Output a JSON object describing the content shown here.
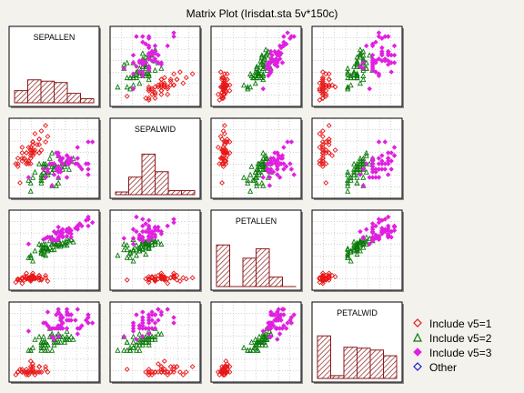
{
  "chart_data": {
    "type": "scatter-matrix",
    "title": "Matrix Plot (Irisdat.sta 5v*150c)",
    "variables": [
      "SEPALLEN",
      "SEPALWID",
      "PETALLEN",
      "PETALWID"
    ],
    "histograms": [
      [
        9,
        17,
        16,
        15,
        7,
        3
      ],
      [
        2,
        13,
        30,
        17,
        3,
        3
      ],
      [
        44,
        0,
        30,
        40,
        10,
        0
      ],
      [
        45,
        3,
        33,
        32,
        30,
        24
      ]
    ],
    "grid": true,
    "legend_position": "bottom-right",
    "series": [
      {
        "name": "Include v5=1",
        "color": "#e81818",
        "marker": "open-diamond",
        "points": [
          [
            5.1,
            3.5,
            1.4,
            0.2
          ],
          [
            4.9,
            3.0,
            1.4,
            0.2
          ],
          [
            4.7,
            3.2,
            1.3,
            0.2
          ],
          [
            4.6,
            3.1,
            1.5,
            0.2
          ],
          [
            5.0,
            3.6,
            1.4,
            0.2
          ],
          [
            5.4,
            3.9,
            1.7,
            0.4
          ],
          [
            4.6,
            3.4,
            1.4,
            0.3
          ],
          [
            5.0,
            3.4,
            1.5,
            0.2
          ],
          [
            4.4,
            2.9,
            1.4,
            0.2
          ],
          [
            4.9,
            3.1,
            1.5,
            0.1
          ],
          [
            5.4,
            3.7,
            1.5,
            0.2
          ],
          [
            4.8,
            3.4,
            1.6,
            0.2
          ],
          [
            4.8,
            3.0,
            1.4,
            0.1
          ],
          [
            4.3,
            3.0,
            1.1,
            0.1
          ],
          [
            5.8,
            4.0,
            1.2,
            0.2
          ],
          [
            5.7,
            4.4,
            1.5,
            0.4
          ],
          [
            5.4,
            3.9,
            1.3,
            0.4
          ],
          [
            5.1,
            3.5,
            1.4,
            0.3
          ],
          [
            5.7,
            3.8,
            1.7,
            0.3
          ],
          [
            5.1,
            3.8,
            1.5,
            0.3
          ],
          [
            5.4,
            3.4,
            1.7,
            0.2
          ],
          [
            5.1,
            3.7,
            1.5,
            0.4
          ],
          [
            4.6,
            3.6,
            1.0,
            0.2
          ],
          [
            5.1,
            3.3,
            1.7,
            0.5
          ],
          [
            4.8,
            3.4,
            1.9,
            0.2
          ],
          [
            5.0,
            3.0,
            1.6,
            0.2
          ],
          [
            5.0,
            3.4,
            1.6,
            0.4
          ],
          [
            5.2,
            3.5,
            1.5,
            0.2
          ],
          [
            5.2,
            3.4,
            1.4,
            0.2
          ],
          [
            4.7,
            3.2,
            1.6,
            0.2
          ],
          [
            4.8,
            3.1,
            1.6,
            0.2
          ],
          [
            5.4,
            3.4,
            1.5,
            0.4
          ],
          [
            5.2,
            4.1,
            1.5,
            0.1
          ],
          [
            5.5,
            4.2,
            1.4,
            0.2
          ],
          [
            4.9,
            3.1,
            1.5,
            0.2
          ],
          [
            5.0,
            3.2,
            1.2,
            0.2
          ],
          [
            5.5,
            3.5,
            1.3,
            0.2
          ],
          [
            4.9,
            3.6,
            1.4,
            0.1
          ],
          [
            4.4,
            3.0,
            1.3,
            0.2
          ],
          [
            5.1,
            3.4,
            1.5,
            0.2
          ],
          [
            5.0,
            3.5,
            1.3,
            0.3
          ],
          [
            4.5,
            2.3,
            1.3,
            0.3
          ],
          [
            4.4,
            3.2,
            1.3,
            0.2
          ],
          [
            5.0,
            3.5,
            1.6,
            0.6
          ],
          [
            5.1,
            3.8,
            1.9,
            0.4
          ],
          [
            4.8,
            3.0,
            1.4,
            0.3
          ],
          [
            5.1,
            3.8,
            1.6,
            0.2
          ],
          [
            4.6,
            3.2,
            1.4,
            0.2
          ],
          [
            5.3,
            3.7,
            1.5,
            0.2
          ],
          [
            5.0,
            3.3,
            1.4,
            0.2
          ]
        ]
      },
      {
        "name": "Include v5=2",
        "color": "#0a7a0a",
        "marker": "open-triangle",
        "points": [
          [
            7.0,
            3.2,
            4.7,
            1.4
          ],
          [
            6.4,
            3.2,
            4.5,
            1.5
          ],
          [
            6.9,
            3.1,
            4.9,
            1.5
          ],
          [
            5.5,
            2.3,
            4.0,
            1.3
          ],
          [
            6.5,
            2.8,
            4.6,
            1.5
          ],
          [
            5.7,
            2.8,
            4.5,
            1.3
          ],
          [
            6.3,
            3.3,
            4.7,
            1.6
          ],
          [
            4.9,
            2.4,
            3.3,
            1.0
          ],
          [
            6.6,
            2.9,
            4.6,
            1.3
          ],
          [
            5.2,
            2.7,
            3.9,
            1.4
          ],
          [
            5.0,
            2.0,
            3.5,
            1.0
          ],
          [
            5.9,
            3.0,
            4.2,
            1.5
          ],
          [
            6.0,
            2.2,
            4.0,
            1.0
          ],
          [
            6.1,
            2.9,
            4.7,
            1.4
          ],
          [
            5.6,
            2.9,
            3.6,
            1.3
          ],
          [
            6.7,
            3.1,
            4.4,
            1.4
          ],
          [
            5.6,
            3.0,
            4.5,
            1.5
          ],
          [
            5.8,
            2.7,
            4.1,
            1.0
          ],
          [
            6.2,
            2.2,
            4.5,
            1.5
          ],
          [
            5.6,
            2.5,
            3.9,
            1.1
          ],
          [
            5.9,
            3.2,
            4.8,
            1.8
          ],
          [
            6.1,
            2.8,
            4.0,
            1.3
          ],
          [
            6.3,
            2.5,
            4.9,
            1.5
          ],
          [
            6.1,
            2.8,
            4.7,
            1.2
          ],
          [
            6.4,
            2.9,
            4.3,
            1.3
          ],
          [
            6.6,
            3.0,
            4.4,
            1.4
          ],
          [
            6.8,
            2.8,
            4.8,
            1.4
          ],
          [
            6.7,
            3.0,
            5.0,
            1.7
          ],
          [
            6.0,
            2.9,
            4.5,
            1.5
          ],
          [
            5.7,
            2.6,
            3.5,
            1.0
          ],
          [
            5.5,
            2.4,
            3.8,
            1.1
          ],
          [
            5.5,
            2.4,
            3.7,
            1.0
          ],
          [
            5.8,
            2.7,
            3.9,
            1.2
          ],
          [
            6.0,
            2.7,
            5.1,
            1.6
          ],
          [
            5.4,
            3.0,
            4.5,
            1.5
          ],
          [
            6.0,
            3.4,
            4.5,
            1.6
          ],
          [
            6.7,
            3.1,
            4.7,
            1.5
          ],
          [
            6.3,
            2.3,
            4.4,
            1.3
          ],
          [
            5.6,
            3.0,
            4.1,
            1.3
          ],
          [
            5.5,
            2.5,
            4.0,
            1.3
          ],
          [
            5.5,
            2.6,
            4.4,
            1.2
          ],
          [
            6.1,
            3.0,
            4.6,
            1.4
          ],
          [
            5.8,
            2.6,
            4.0,
            1.2
          ],
          [
            5.0,
            2.3,
            3.3,
            1.0
          ],
          [
            5.6,
            2.7,
            4.2,
            1.3
          ],
          [
            5.7,
            3.0,
            4.2,
            1.2
          ],
          [
            5.7,
            2.9,
            4.2,
            1.3
          ],
          [
            6.2,
            2.9,
            4.3,
            1.3
          ],
          [
            5.1,
            2.5,
            3.0,
            1.1
          ],
          [
            5.7,
            2.8,
            4.1,
            1.3
          ]
        ]
      },
      {
        "name": "Include v5=3",
        "color": "#e020e0",
        "marker": "filled-diamond",
        "points": [
          [
            6.3,
            3.3,
            6.0,
            2.5
          ],
          [
            5.8,
            2.7,
            5.1,
            1.9
          ],
          [
            7.1,
            3.0,
            5.9,
            2.1
          ],
          [
            6.3,
            2.9,
            5.6,
            1.8
          ],
          [
            6.5,
            3.0,
            5.8,
            2.2
          ],
          [
            7.6,
            3.0,
            6.6,
            2.1
          ],
          [
            4.9,
            2.5,
            4.5,
            1.7
          ],
          [
            7.3,
            2.9,
            6.3,
            1.8
          ],
          [
            6.7,
            2.5,
            5.8,
            1.8
          ],
          [
            7.2,
            3.6,
            6.1,
            2.5
          ],
          [
            6.5,
            3.2,
            5.1,
            2.0
          ],
          [
            6.4,
            2.7,
            5.3,
            1.9
          ],
          [
            6.8,
            3.0,
            5.5,
            2.1
          ],
          [
            5.7,
            2.5,
            5.0,
            2.0
          ],
          [
            5.8,
            2.8,
            5.1,
            2.4
          ],
          [
            6.4,
            3.2,
            5.3,
            2.3
          ],
          [
            6.5,
            3.0,
            5.5,
            1.8
          ],
          [
            7.7,
            3.8,
            6.7,
            2.2
          ],
          [
            7.7,
            2.6,
            6.9,
            2.3
          ],
          [
            6.0,
            2.2,
            5.0,
            1.5
          ],
          [
            6.9,
            3.2,
            5.7,
            2.3
          ],
          [
            5.6,
            2.8,
            4.9,
            2.0
          ],
          [
            7.7,
            2.8,
            6.7,
            2.0
          ],
          [
            6.3,
            2.7,
            4.9,
            1.8
          ],
          [
            6.7,
            3.3,
            5.7,
            2.1
          ],
          [
            7.2,
            3.2,
            6.0,
            1.8
          ],
          [
            6.2,
            2.8,
            4.8,
            1.8
          ],
          [
            6.1,
            3.0,
            4.9,
            1.8
          ],
          [
            6.4,
            2.8,
            5.6,
            2.1
          ],
          [
            7.2,
            3.0,
            5.8,
            1.6
          ],
          [
            7.4,
            2.8,
            6.1,
            1.9
          ],
          [
            7.9,
            3.8,
            6.4,
            2.0
          ],
          [
            6.4,
            2.8,
            5.6,
            2.2
          ],
          [
            6.3,
            2.8,
            5.1,
            1.5
          ],
          [
            6.1,
            2.6,
            5.6,
            1.4
          ],
          [
            7.7,
            3.0,
            6.1,
            2.3
          ],
          [
            6.3,
            3.4,
            5.6,
            2.4
          ],
          [
            6.4,
            3.1,
            5.5,
            1.8
          ],
          [
            6.0,
            3.0,
            4.8,
            1.8
          ],
          [
            6.9,
            3.1,
            5.4,
            2.1
          ],
          [
            6.7,
            3.1,
            5.6,
            2.4
          ],
          [
            6.9,
            3.1,
            5.1,
            2.3
          ],
          [
            5.8,
            2.7,
            5.1,
            1.9
          ],
          [
            6.8,
            3.2,
            5.9,
            2.3
          ],
          [
            6.7,
            3.3,
            5.7,
            2.5
          ],
          [
            6.7,
            3.0,
            5.2,
            2.3
          ],
          [
            6.3,
            2.5,
            5.0,
            1.9
          ],
          [
            6.5,
            3.0,
            5.2,
            2.0
          ],
          [
            6.2,
            3.4,
            5.4,
            2.3
          ],
          [
            5.9,
            3.0,
            5.1,
            1.8
          ]
        ]
      }
    ]
  },
  "legend": [
    {
      "label": "Include v5=1",
      "color": "#e81818",
      "marker": "open-diamond"
    },
    {
      "label": "Include v5=2",
      "color": "#0a7a0a",
      "marker": "open-triangle"
    },
    {
      "label": "Include v5=3",
      "color": "#e020e0",
      "marker": "filled-diamond"
    },
    {
      "label": "Other",
      "color": "#1818c8",
      "marker": "open-diamond"
    }
  ],
  "colors": {
    "panel_bg": "#ffffff",
    "page_bg": "#f3f2ec",
    "frame": "#000000",
    "grid": "#b8b8b8",
    "bar": "#8b1a1a"
  }
}
